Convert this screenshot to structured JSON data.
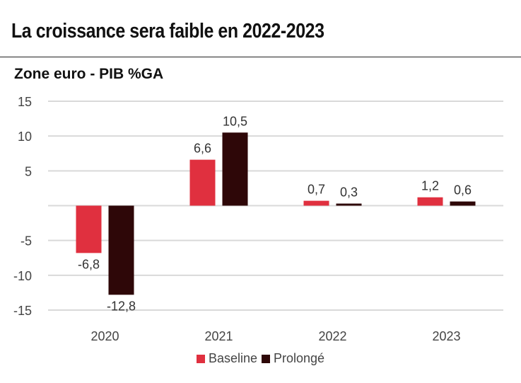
{
  "header": {
    "title": "La croissance sera faible en 2022-2023",
    "subtitle": "Zone euro - PIB %GA"
  },
  "chart_data": {
    "type": "bar",
    "title": "La croissance sera faible en 2022-2023",
    "subtitle": "Zone euro - PIB %GA",
    "xlabel": "",
    "ylabel": "",
    "categories": [
      "2020",
      "2021",
      "2022",
      "2023"
    ],
    "series": [
      {
        "name": "Baseline",
        "color": "#e0303f",
        "values": [
          -6.8,
          6.6,
          0.7,
          1.2
        ],
        "labels": [
          "-6,8",
          "6,6",
          "0,7",
          "1,2"
        ]
      },
      {
        "name": "Prolongé",
        "color": "#2e0708",
        "values": [
          -12.8,
          10.5,
          0.3,
          0.6
        ],
        "labels": [
          "-12,8",
          "10,5",
          "0,3",
          "0,6"
        ]
      }
    ],
    "ylim": [
      -15,
      15
    ],
    "yticks": [
      15,
      10,
      5,
      -5,
      -10,
      -15
    ],
    "ytick_labels": [
      "15",
      "10",
      "5",
      "-5",
      "-10",
      "-15"
    ],
    "grid": true,
    "legend_position": "bottom"
  }
}
